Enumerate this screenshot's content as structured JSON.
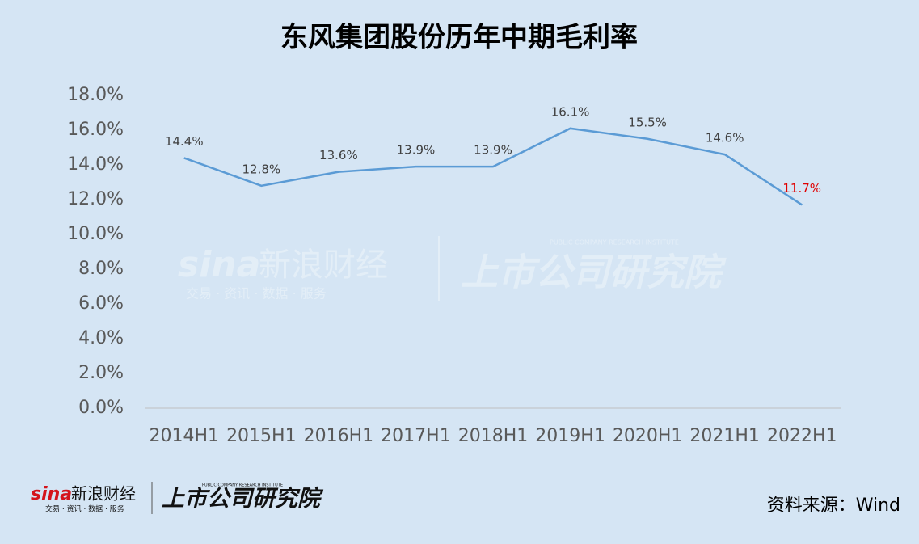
{
  "chart_data": {
    "type": "line",
    "title": "东风集团股份历年中期毛利率",
    "categories": [
      "2014H1",
      "2015H1",
      "2016H1",
      "2017H1",
      "2018H1",
      "2019H1",
      "2020H1",
      "2021H1",
      "2022H1"
    ],
    "series": [
      {
        "color": "#5b9bd5",
        "values": [
          14.4,
          12.8,
          13.6,
          13.9,
          13.9,
          16.1,
          15.5,
          14.6,
          11.7
        ],
        "value_labels": [
          "14.4%",
          "12.8%",
          "13.6%",
          "13.9%",
          "13.9%",
          "16.1%",
          "15.5%",
          "14.6%",
          "11.7%"
        ],
        "value_label_colors": [
          "#404040",
          "#404040",
          "#404040",
          "#404040",
          "#404040",
          "#404040",
          "#404040",
          "#404040",
          "#e00000"
        ]
      }
    ],
    "ylim": [
      0,
      18
    ],
    "yticks": [
      {
        "value": 0,
        "label": "0.0%"
      },
      {
        "value": 2,
        "label": "2.0%"
      },
      {
        "value": 4,
        "label": "4.0%"
      },
      {
        "value": 6,
        "label": "6.0%"
      },
      {
        "value": 8,
        "label": "8.0%"
      },
      {
        "value": 10,
        "label": "10.0%"
      },
      {
        "value": 12,
        "label": "12.0%"
      },
      {
        "value": 14,
        "label": "14.0%"
      },
      {
        "value": 16,
        "label": "16.0%"
      },
      {
        "value": 18,
        "label": "18.0%"
      }
    ],
    "grid": false,
    "source": "资料来源：Wind"
  },
  "branding": {
    "sina": "sina",
    "name": "新浪财经",
    "slogan": "交易 · 资讯 · 数据 · 服务",
    "institute": "上市公司研究院",
    "institute_en": "PUBLIC COMPANY RESEARCH INSTITUTE"
  }
}
